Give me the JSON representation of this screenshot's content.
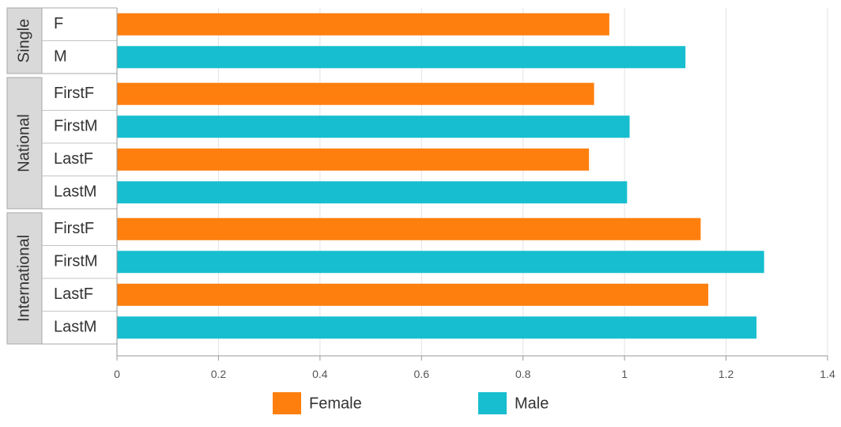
{
  "chart_data": {
    "type": "bar",
    "orientation": "horizontal",
    "groups": [
      {
        "label": "Single",
        "categories": [
          "F",
          "M"
        ]
      },
      {
        "label": "National",
        "categories": [
          "FirstF",
          "FirstM",
          "LastF",
          "LastM"
        ]
      },
      {
        "label": "International",
        "categories": [
          "FirstF",
          "FirstM",
          "LastF",
          "LastM"
        ]
      }
    ],
    "bars": [
      {
        "group": "Single",
        "category": "F",
        "series": "Female",
        "value": 0.97
      },
      {
        "group": "Single",
        "category": "M",
        "series": "Male",
        "value": 1.12
      },
      {
        "group": "National",
        "category": "FirstF",
        "series": "Female",
        "value": 0.94
      },
      {
        "group": "National",
        "category": "FirstM",
        "series": "Male",
        "value": 1.01
      },
      {
        "group": "National",
        "category": "LastF",
        "series": "Female",
        "value": 0.93
      },
      {
        "group": "National",
        "category": "LastM",
        "series": "Male",
        "value": 1.005
      },
      {
        "group": "International",
        "category": "FirstF",
        "series": "Female",
        "value": 1.15
      },
      {
        "group": "International",
        "category": "FirstM",
        "series": "Male",
        "value": 1.275
      },
      {
        "group": "International",
        "category": "LastF",
        "series": "Female",
        "value": 1.165
      },
      {
        "group": "International",
        "category": "LastM",
        "series": "Male",
        "value": 1.26
      }
    ],
    "series": [
      {
        "name": "Female",
        "color": "#ff7f0e"
      },
      {
        "name": "Male",
        "color": "#17becf"
      }
    ],
    "x_ticks": [
      "0",
      "0.2",
      "0.4",
      "0.6",
      "0.8",
      "1",
      "1.2",
      "1.4"
    ],
    "xlim": [
      0,
      1.4
    ],
    "grid": true,
    "legend_position": "bottom"
  }
}
